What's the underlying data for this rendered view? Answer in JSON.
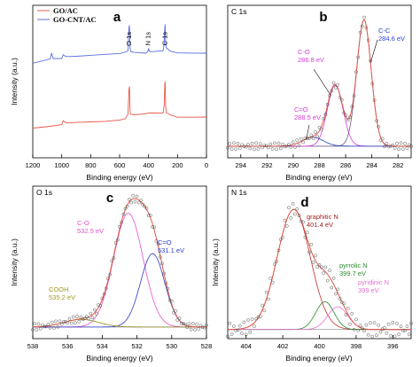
{
  "chart_data": [
    {
      "panel": "a",
      "type": "line",
      "xlabel": "Binding energy (eV)",
      "ylabel": "Intensity (a.u.)",
      "xlim": [
        1200,
        0
      ],
      "xticks": [
        1200,
        1000,
        800,
        600,
        400,
        200,
        0
      ],
      "legend": {
        "placement": "top-left",
        "entries": [
          "GO/AC",
          "GO-CNT/AC"
        ]
      },
      "peak_labels": [
        {
          "text": "O 1s",
          "x": 532
        },
        {
          "text": "N 1s",
          "x": 400
        },
        {
          "text": "C 1s",
          "x": 285
        }
      ],
      "series": [
        {
          "name": "GO/AC",
          "color": "#e8584a",
          "x": [
            1200,
            1080,
            1000,
            990,
            978,
            960,
            900,
            800,
            700,
            600,
            560,
            542,
            536,
            532,
            528,
            522,
            500,
            420,
            400,
            300,
            292,
            288,
            285,
            282,
            278,
            250,
            200,
            100,
            0
          ],
          "y": [
            0.195,
            0.205,
            0.215,
            0.24,
            0.23,
            0.225,
            0.23,
            0.235,
            0.24,
            0.25,
            0.26,
            0.29,
            0.45,
            0.47,
            0.3,
            0.285,
            0.28,
            0.285,
            0.29,
            0.29,
            0.34,
            0.48,
            0.5,
            0.35,
            0.3,
            0.285,
            0.27,
            0.27,
            0.27
          ]
        },
        {
          "name": "GO-CNT/AC",
          "color": "#5b6fe0",
          "x": [
            1200,
            1080,
            1070,
            1060,
            1000,
            990,
            978,
            960,
            900,
            800,
            700,
            600,
            560,
            542,
            536,
            532,
            528,
            522,
            500,
            420,
            405,
            400,
            395,
            380,
            300,
            292,
            288,
            285,
            282,
            278,
            250,
            200,
            100,
            0
          ],
          "y": [
            0.62,
            0.65,
            0.69,
            0.655,
            0.655,
            0.68,
            0.67,
            0.665,
            0.665,
            0.67,
            0.675,
            0.68,
            0.69,
            0.7,
            0.85,
            0.87,
            0.72,
            0.7,
            0.695,
            0.69,
            0.7,
            0.72,
            0.7,
            0.695,
            0.7,
            0.74,
            0.85,
            0.87,
            0.75,
            0.72,
            0.7,
            0.69,
            0.69,
            0.69
          ]
        }
      ]
    },
    {
      "panel": "b",
      "type": "line",
      "title": "C 1s",
      "xlabel": "Binding energy (eV)",
      "ylabel": "",
      "xlim": [
        295,
        281
      ],
      "xticks": [
        294,
        292,
        290,
        288,
        286,
        284,
        282
      ],
      "components": [
        {
          "label": "C-C",
          "value": "284.6 eV",
          "center": 284.6,
          "height": 1.0,
          "sigma": 0.55,
          "color": "#6b5a8e"
        },
        {
          "label": "C-O",
          "value": "286.8 eV",
          "center": 286.8,
          "height": 0.48,
          "sigma": 0.6,
          "color": "#d63bd6"
        },
        {
          "label": "C=O",
          "value": "288.5 eV",
          "center": 288.5,
          "height": 0.07,
          "sigma": 0.8,
          "color": "#1f3fb0"
        }
      ],
      "baseline": 0.05,
      "envelope_color": "#e05a4a",
      "label_colors": {
        "C-C": "#2c3fd8",
        "C-O": "#d63bd6",
        "C=O": "#d63bd6"
      }
    },
    {
      "panel": "c",
      "type": "line",
      "title": "O 1s",
      "xlabel": "Binding energy (eV)",
      "ylabel": "Intensity (a.u.)",
      "xlim": [
        538,
        528
      ],
      "xticks": [
        538,
        536,
        534,
        532,
        530,
        528
      ],
      "components": [
        {
          "label": "C-O",
          "value": "532.5 eV",
          "center": 532.5,
          "height": 0.9,
          "sigma": 0.85,
          "color": "#e850c8"
        },
        {
          "label": "C=O",
          "value": "531.1 eV",
          "center": 531.1,
          "height": 0.58,
          "sigma": 0.7,
          "color": "#2a3cc8"
        },
        {
          "label": "COOH",
          "value": "535.2 eV",
          "center": 535.2,
          "height": 0.06,
          "sigma": 1.0,
          "color": "#8a8a1a"
        }
      ],
      "baseline": 0.05,
      "envelope_color": "#e05a4a",
      "label_colors": {
        "C-O": "#e850c8",
        "C=O": "#2a3cc8",
        "COOH": "#a39a20"
      }
    },
    {
      "panel": "d",
      "type": "line",
      "title": "N 1s",
      "xlabel": "Binding energy (eV)",
      "ylabel": "Intensity (a.u.)",
      "xlim": [
        405,
        395
      ],
      "xticks": [
        404,
        402,
        400,
        398,
        396
      ],
      "components": [
        {
          "label": "graphitic N",
          "value": "401.4 eV",
          "center": 401.4,
          "height": 0.95,
          "sigma": 0.9,
          "color": "#c0302a"
        },
        {
          "label": "pyrrolic N",
          "value": "399.7 eV",
          "center": 399.7,
          "height": 0.22,
          "sigma": 0.5,
          "color": "#2a8a2a"
        },
        {
          "label": "pyridinic N",
          "value": "399 eV",
          "center": 399.0,
          "height": 0.18,
          "sigma": 0.55,
          "color": "#e070d0"
        }
      ],
      "baseline": 0.03,
      "envelope_color": "#e05a4a",
      "label_colors": {
        "graphitic N": "#a02020",
        "pyrrolic N": "#2a8a2a",
        "pyridinic N": "#e070d0"
      }
    }
  ]
}
